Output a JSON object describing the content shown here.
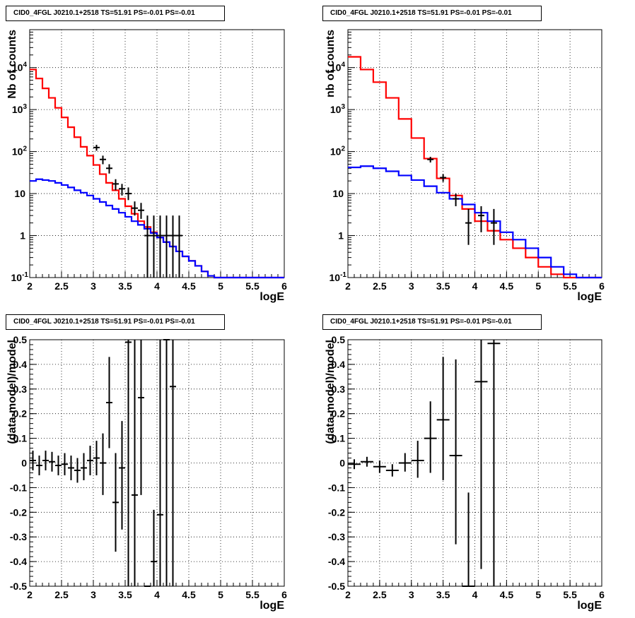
{
  "colors": {
    "model_total": "#ff0000",
    "model_bkg": "#0000ff",
    "data": "#000000",
    "grid": "#000000"
  },
  "chart_data": [
    {
      "type": "line",
      "title": "CID0_4FGL J0210.1+2518 TS=51.91 PS=-0.01 PS=-0.01",
      "xlabel": "logE",
      "ylabel": "Nb of counts",
      "xlim": [
        2,
        6
      ],
      "ylim": [
        0.1,
        80000
      ],
      "yscale": "log",
      "grid": true,
      "x_ticks": [
        "2",
        "2.5",
        "3",
        "3.5",
        "4",
        "4.5",
        "5",
        "5.5",
        "6"
      ],
      "y_ticks": [
        "10^-1",
        "1",
        "10",
        "10^2",
        "10^3",
        "10^4"
      ],
      "bin_edges": [
        2.0,
        2.1,
        2.2,
        2.3,
        2.4,
        2.5,
        2.6,
        2.7,
        2.8,
        2.9,
        3.0,
        3.1,
        3.2,
        3.3,
        3.4,
        3.5,
        3.6,
        3.7,
        3.8,
        3.9,
        4.0,
        4.1,
        4.2,
        4.3,
        4.4,
        4.5,
        4.6,
        4.7,
        4.8,
        4.9,
        5.0,
        5.1,
        5.2,
        5.3,
        5.4,
        5.5,
        5.6,
        5.7,
        5.8,
        5.9,
        6.0
      ],
      "series": [
        {
          "name": "",
          "style": "step",
          "color": "#ff0000",
          "values": [
            9000,
            5500,
            3200,
            1900,
            1100,
            650,
            380,
            220,
            130,
            80,
            48,
            29,
            18,
            12,
            7.5,
            5,
            3.3,
            2.2,
            1.6,
            1.2,
            0.9,
            0.7,
            0.55,
            0.42,
            0.32,
            0.25,
            0.19,
            0.14,
            0.11,
            0.1,
            0.1,
            0.1,
            0.1,
            0.1,
            0.1,
            0.1,
            0.1,
            0.1,
            0.1,
            0.1
          ]
        },
        {
          "name": "",
          "style": "step",
          "color": "#0000ff",
          "values": [
            20,
            22,
            21,
            20,
            18,
            16,
            14,
            12,
            10.5,
            9,
            7.5,
            6.3,
            5.2,
            4.3,
            3.5,
            2.8,
            2.2,
            1.8,
            1.45,
            1.15,
            0.9,
            0.7,
            0.55,
            0.42,
            0.32,
            0.25,
            0.19,
            0.14,
            0.11,
            0.1,
            0.1,
            0.1,
            0.1,
            0.1,
            0.1,
            0.1,
            0.1,
            0.1,
            0.1,
            0.1
          ]
        },
        {
          "name": "",
          "style": "errorbar",
          "color": "#000000",
          "x": [
            3.05,
            3.15,
            3.25,
            3.35,
            3.45,
            3.55,
            3.65,
            3.75,
            3.85,
            3.95,
            4.05,
            4.15,
            4.25,
            4.35
          ],
          "y": [
            125,
            65,
            40,
            17,
            13,
            10,
            4.5,
            4,
            1,
            1,
            1,
            1,
            1,
            1
          ],
          "ylow": [
            105,
            50,
            30,
            12,
            9,
            7,
            3,
            2.5,
            0.1,
            0.1,
            0.1,
            0.1,
            0.1,
            0.1
          ],
          "yhigh": [
            145,
            80,
            50,
            22,
            17,
            14,
            6.5,
            6,
            3,
            3,
            3,
            3,
            3,
            3
          ]
        }
      ]
    },
    {
      "type": "line",
      "title": "CID0_4FGL J0210.1+2518 TS=51.91 PS=-0.01 PS=-0.01",
      "xlabel": "logE",
      "ylabel": "nb of counts",
      "xlim": [
        2,
        6
      ],
      "ylim": [
        0.1,
        80000
      ],
      "yscale": "log",
      "grid": true,
      "x_ticks": [
        "2",
        "2.5",
        "3",
        "3.5",
        "4",
        "4.5",
        "5",
        "5.5",
        "6"
      ],
      "y_ticks": [
        "10^-1",
        "1",
        "10",
        "10^2",
        "10^3",
        "10^4"
      ],
      "bin_edges": [
        2.0,
        2.2,
        2.4,
        2.6,
        2.8,
        3.0,
        3.2,
        3.4,
        3.6,
        3.8,
        4.0,
        4.2,
        4.4,
        4.6,
        4.8,
        5.0,
        5.2,
        5.4,
        5.6,
        5.8,
        6.0
      ],
      "series": [
        {
          "name": "",
          "style": "step",
          "color": "#ff0000",
          "values": [
            18000,
            9000,
            4500,
            1900,
            600,
            210,
            68,
            23,
            9,
            4.3,
            2.2,
            1.3,
            0.8,
            0.5,
            0.3,
            0.18,
            0.12,
            0.1,
            0.1,
            0.1
          ]
        },
        {
          "name": "",
          "style": "step",
          "color": "#0000ff",
          "values": [
            42,
            45,
            40,
            34,
            27,
            21,
            15,
            10.5,
            7.5,
            5.5,
            3.5,
            2.2,
            1.2,
            0.8,
            0.5,
            0.3,
            0.18,
            0.12,
            0.1,
            0.1
          ]
        },
        {
          "name": "",
          "style": "errorbar",
          "color": "#000000",
          "x": [
            3.3,
            3.5,
            3.7,
            3.9,
            4.1,
            4.3
          ],
          "y": [
            65,
            24,
            7.5,
            2,
            3,
            2
          ],
          "ylow": [
            55,
            19,
            5,
            0.6,
            1.2,
            0.6
          ],
          "yhigh": [
            75,
            29,
            10,
            4.3,
            5,
            4.3
          ]
        }
      ]
    },
    {
      "type": "scatter",
      "title": "CID0_4FGL J0210.1+2518 TS=51.91 PS=-0.01 PS=-0.01",
      "xlabel": "logE",
      "ylabel": "(data-model)/model",
      "xlim": [
        2,
        6
      ],
      "ylim": [
        -0.5,
        0.5
      ],
      "grid": true,
      "x_ticks": [
        "2",
        "2.5",
        "3",
        "3.5",
        "4",
        "4.5",
        "5",
        "5.5",
        "6"
      ],
      "y_ticks": [
        "-0.5",
        "-0.4",
        "-0.3",
        "-0.2",
        "-0.1",
        "0",
        "0.1",
        "0.2",
        "0.3",
        "0.4",
        "0.5"
      ],
      "series": [
        {
          "name": "",
          "style": "errorbar",
          "color": "#000000",
          "xerr": 0.05,
          "x": [
            2.05,
            2.15,
            2.25,
            2.35,
            2.45,
            2.55,
            2.65,
            2.75,
            2.85,
            2.95,
            3.05,
            3.15,
            3.25,
            3.35,
            3.45,
            3.55,
            3.65,
            3.75,
            3.85,
            3.95,
            4.05,
            4.15,
            4.25
          ],
          "y": [
            0.01,
            -0.01,
            0.01,
            0.005,
            -0.01,
            -0.005,
            -0.02,
            -0.03,
            -0.02,
            0.01,
            0.02,
            0.0,
            0.245,
            -0.16,
            -0.02,
            0.49,
            -0.13,
            0.265,
            -0.5,
            -0.4,
            -0.21,
            0.5,
            0.31
          ],
          "ylow": [
            -0.03,
            -0.05,
            -0.03,
            -0.035,
            -0.05,
            -0.05,
            -0.07,
            -0.08,
            -0.07,
            -0.05,
            -0.05,
            -0.13,
            0.06,
            -0.36,
            -0.27,
            -0.5,
            -0.5,
            -0.13,
            -0.5,
            -0.5,
            -0.5,
            -0.5,
            -0.5
          ],
          "yhigh": [
            0.05,
            0.03,
            0.05,
            0.045,
            0.03,
            0.04,
            0.03,
            0.02,
            0.04,
            0.07,
            0.09,
            0.12,
            0.43,
            0.04,
            0.17,
            0.5,
            0.5,
            0.5,
            -0.5,
            -0.19,
            0.5,
            0.5,
            0.5
          ]
        }
      ]
    },
    {
      "type": "scatter",
      "title": "CID0_4FGL J0210.1+2518 TS=51.91 PS=-0.01 PS=-0.01",
      "xlabel": "logE",
      "ylabel": "(data-model)/model",
      "xlim": [
        2,
        6
      ],
      "ylim": [
        -0.5,
        0.5
      ],
      "grid": true,
      "x_ticks": [
        "2",
        "2.5",
        "3",
        "3.5",
        "4",
        "4.5",
        "5",
        "5.5",
        "6"
      ],
      "y_ticks": [
        "-0.5",
        "-0.4",
        "-0.3",
        "-0.2",
        "-0.1",
        "0",
        "0.1",
        "0.2",
        "0.3",
        "0.4",
        "0.5"
      ],
      "series": [
        {
          "name": "",
          "style": "errorbar",
          "color": "#000000",
          "xerr": 0.1,
          "x": [
            2.1,
            2.3,
            2.5,
            2.7,
            2.9,
            3.1,
            3.3,
            3.5,
            3.7,
            3.9,
            4.1,
            4.3
          ],
          "y": [
            -0.005,
            0.005,
            -0.015,
            -0.03,
            0.0,
            0.01,
            0.1,
            0.175,
            0.03,
            -0.5,
            0.33,
            0.485
          ],
          "ylow": [
            -0.025,
            -0.015,
            -0.04,
            -0.055,
            -0.035,
            -0.06,
            -0.04,
            -0.07,
            -0.33,
            -0.5,
            -0.43,
            -0.5
          ],
          "yhigh": [
            0.015,
            0.025,
            0.01,
            -0.005,
            0.04,
            0.09,
            0.25,
            0.43,
            0.42,
            -0.12,
            0.5,
            0.5
          ]
        }
      ]
    }
  ]
}
